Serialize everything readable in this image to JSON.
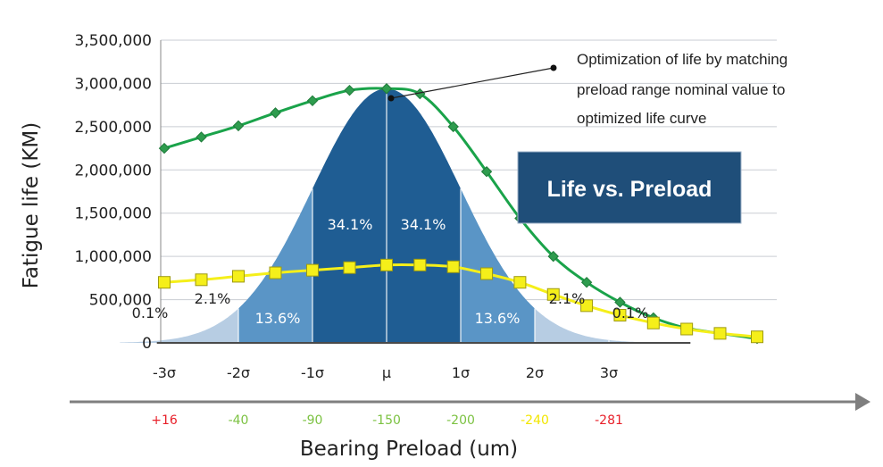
{
  "chart_data": {
    "type": "line",
    "title": "",
    "xlabel": "Bearing Preload (um)",
    "ylabel": "Fatigue life (KM)",
    "ylim": [
      0,
      3500000
    ],
    "yticks": [
      "0",
      "500,000",
      "1,000,000",
      "1,500,000",
      "2,000,000",
      "2,500,000",
      "3,000,000",
      "3,500,000"
    ],
    "grid": true,
    "sigma_labels": [
      "-3σ",
      "-2σ",
      "-1σ",
      "μ",
      "1σ",
      "2σ",
      "3σ"
    ],
    "preload_labels": [
      {
        "text": "+16",
        "color": "#e8202a"
      },
      {
        "text": "-40",
        "color": "#7cc242"
      },
      {
        "text": "-90",
        "color": "#7cc242"
      },
      {
        "text": "-150",
        "color": "#7cc242"
      },
      {
        "text": "-200",
        "color": "#7cc242"
      },
      {
        "text": "-240",
        "color": "#f2e600"
      },
      {
        "text": "-281",
        "color": "#e8202a"
      }
    ],
    "distribution_percentages": [
      "0.1%",
      "2.1%",
      "13.6%",
      "34.1%",
      "34.1%",
      "13.6%",
      "2.1%",
      "0.1%"
    ],
    "series": [
      {
        "color": "#1aa34a",
        "marker_color": "#2e9c4e",
        "x": [
          -3,
          -2.5,
          -2,
          -1.5,
          -1,
          -0.5,
          0,
          0.45,
          0.9,
          1.35,
          1.8,
          2.25,
          2.7,
          3.15,
          3.6,
          4.05,
          4.5,
          5.0
        ],
        "values": [
          2250000,
          2380000,
          2510000,
          2660000,
          2800000,
          2920000,
          2940000,
          2880000,
          2500000,
          1980000,
          1440000,
          1000000,
          700000,
          470000,
          290000,
          170000,
          110000,
          50000
        ]
      },
      {
        "color": "#f5ef1a",
        "marker_color": "#f5ef1a",
        "x": [
          -3,
          -2.5,
          -2,
          -1.5,
          -1,
          -0.5,
          0,
          0.45,
          0.9,
          1.35,
          1.8,
          2.25,
          2.7,
          3.15,
          3.6,
          4.05,
          4.5,
          5.0
        ],
        "values": [
          700000,
          730000,
          770000,
          810000,
          840000,
          870000,
          900000,
          900000,
          880000,
          800000,
          700000,
          560000,
          430000,
          320000,
          230000,
          160000,
          110000,
          70000
        ]
      }
    ],
    "annotation": {
      "lines": [
        "Optimization of life by matching",
        "preload range nominal value to",
        "optimized life curve"
      ]
    },
    "title_box": {
      "text": "Life vs. Preload",
      "color": "#1f4e79"
    }
  }
}
